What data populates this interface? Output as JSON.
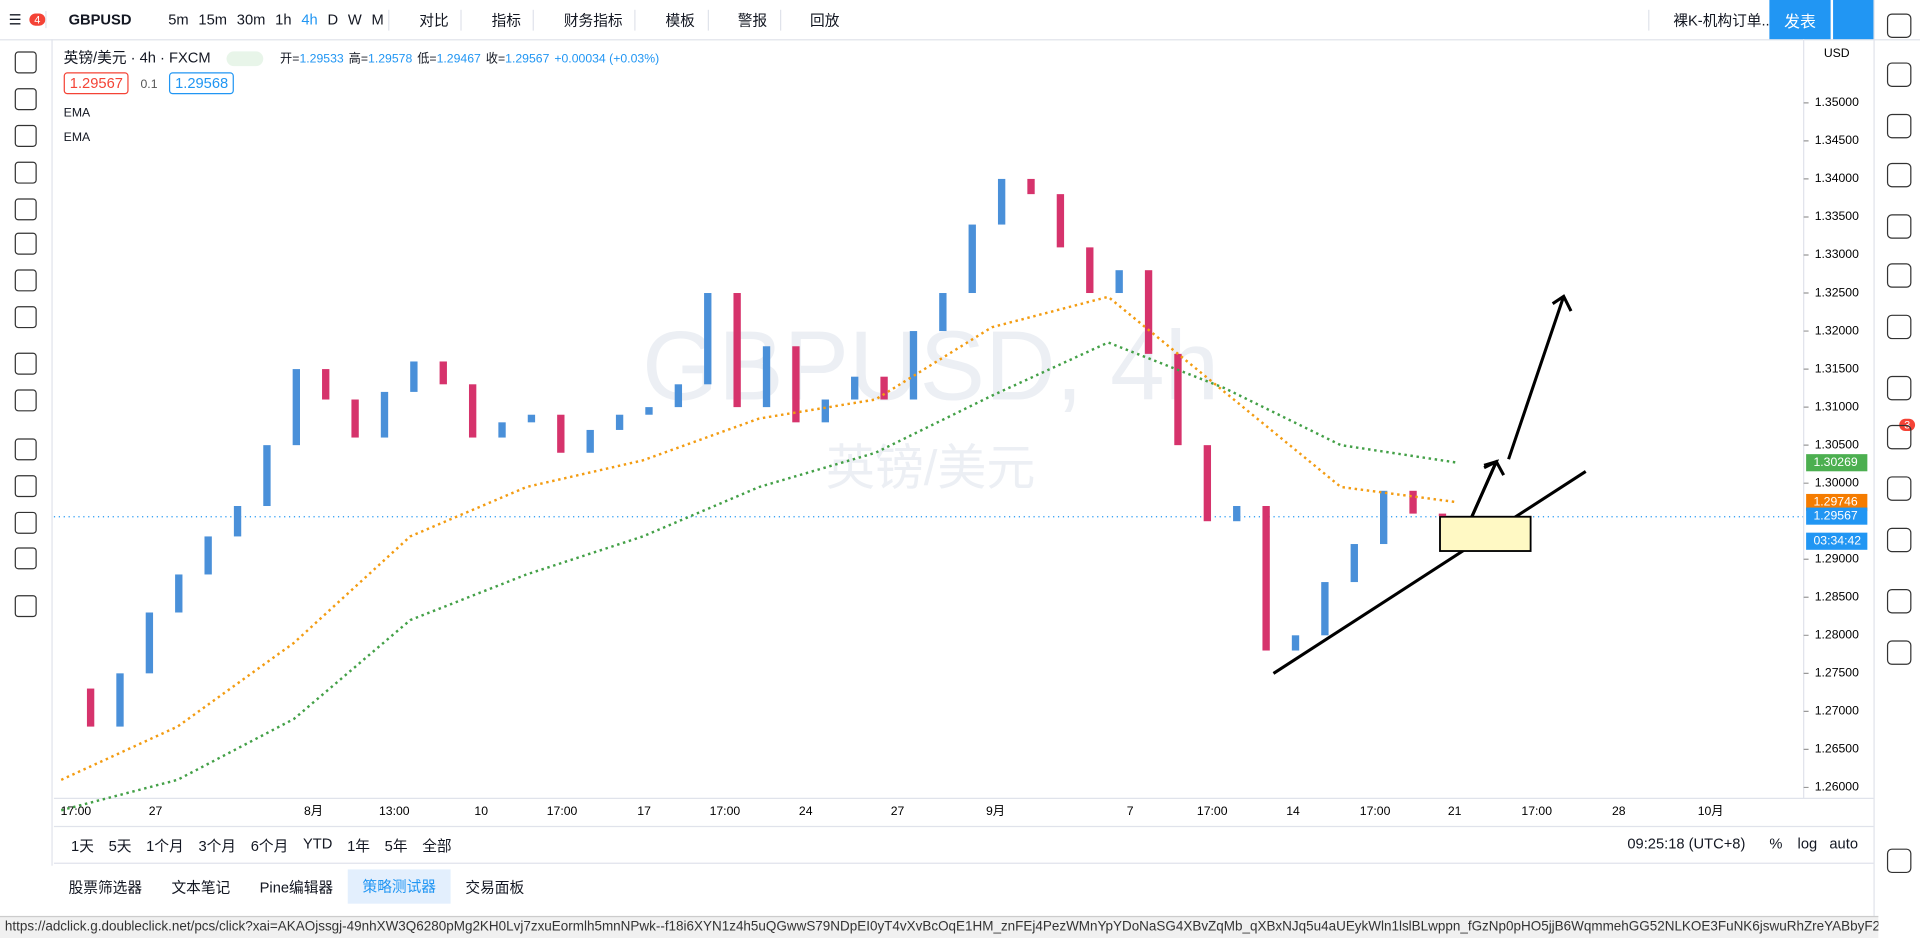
{
  "header": {
    "symbol": "GBPUSD",
    "notification_count": "4",
    "intervals": [
      "5m",
      "15m",
      "30m",
      "1h",
      "4h",
      "D",
      "W",
      "M"
    ],
    "buttons": [
      "对比",
      "指标",
      "财务指标",
      "模板",
      "警报",
      "回放"
    ],
    "layout_name": "裸K-机构订单...",
    "publish": "发表"
  },
  "legend": {
    "title": "英镑/美元 · 4h · FXCM",
    "open_label": "开=",
    "open": "1.29533",
    "high_label": "高=",
    "high": "1.29578",
    "low_label": "低=",
    "low": "1.29467",
    "close_label": "收=",
    "close": "1.29567",
    "change": "+0.00034 (+0.03%)",
    "bid": "1.29567",
    "spread": "0.1",
    "ask": "1.29568",
    "indicators": [
      "EMA",
      "EMA"
    ]
  },
  "watermark": {
    "symbol": "GBPUSD, 4h",
    "name": "英镑/美元"
  },
  "price_axis": {
    "currency": "USD",
    "labels": [
      "1.35000",
      "1.34500",
      "1.34000",
      "1.33500",
      "1.33000",
      "1.32500",
      "1.32000",
      "1.31500",
      "1.31000",
      "1.30500",
      "1.30000",
      "1.29000",
      "1.28500",
      "1.28000",
      "1.27500",
      "1.27000",
      "1.26500",
      "1.26000"
    ],
    "badges": [
      {
        "text": "1.30269",
        "color": "#4caf50"
      },
      {
        "text": "1.29746",
        "color": "#f57c00"
      },
      {
        "text": "1.29567",
        "color": "#2196f3"
      },
      {
        "text": "03:34:42",
        "color": "#2196f3"
      }
    ]
  },
  "price_series": {
    "closes": [
      1.273,
      1.268,
      1.275,
      1.283,
      1.288,
      1.293,
      1.297,
      1.305,
      1.315,
      1.311,
      1.306,
      1.312,
      1.316,
      1.313,
      1.306,
      1.308,
      1.309,
      1.304,
      1.307,
      1.309,
      1.31,
      1.313,
      1.325,
      1.31,
      1.318,
      1.308,
      1.311,
      1.314,
      1.311,
      1.32,
      1.325,
      1.334,
      1.34,
      1.338,
      1.331,
      1.325,
      1.328,
      1.317,
      1.305,
      1.295,
      1.297,
      1.278,
      1.28,
      1.287,
      1.292,
      1.299,
      1.296,
      1.29567
    ],
    "ema_fast": [
      1.261,
      1.268,
      1.279,
      1.293,
      1.2995,
      1.303,
      1.3085,
      1.311,
      1.3205,
      1.3245,
      1.312,
      1.2995,
      1.2975
    ],
    "ema_slow": [
      1.257,
      1.261,
      1.269,
      1.282,
      1.288,
      1.293,
      1.2995,
      1.304,
      1.3115,
      1.3185,
      1.3125,
      1.305,
      1.3027
    ]
  },
  "time_axis": [
    "17:00",
    "27",
    "8月",
    "13:00",
    "10",
    "17:00",
    "17",
    "17:00",
    "24",
    "27",
    "9月",
    "7",
    "17:00",
    "14",
    "17:00",
    "21",
    "17:00",
    "28",
    "10月"
  ],
  "range_bar": {
    "ranges": [
      "1天",
      "5天",
      "1个月",
      "3个月",
      "6个月",
      "YTD",
      "1年",
      "5年",
      "全部"
    ],
    "clock": "09:25:18 (UTC+8)",
    "percent": "%",
    "log": "log",
    "auto": "auto"
  },
  "bottom_tabs": [
    "股票筛选器",
    "文本笔记",
    "Pine编辑器",
    "策略测试器",
    "交易面板"
  ],
  "sidebar_badge": "3",
  "status_url": "https://adclick.g.doubleclick.net/pcs/click?xai=AKAOjssgj-49nhXW3Q6280pMg2KH0Lvj7zxuEormlh5mnNPwk--f18i6XYN1z4h5uQGwwS79NDpEI0yT4vXvBcOqE1HM_znFEj4PezWMnYpYDoNaSG4XBvZqMb_qXBxNJq5u4aUEykWln1lslBLwppn_fGzNp0pHO5jjB6WqmmehGG52NLKOE3FuNK6jswuRhZreYABbyF2QPBgEEYzn_ct7J..."
}
